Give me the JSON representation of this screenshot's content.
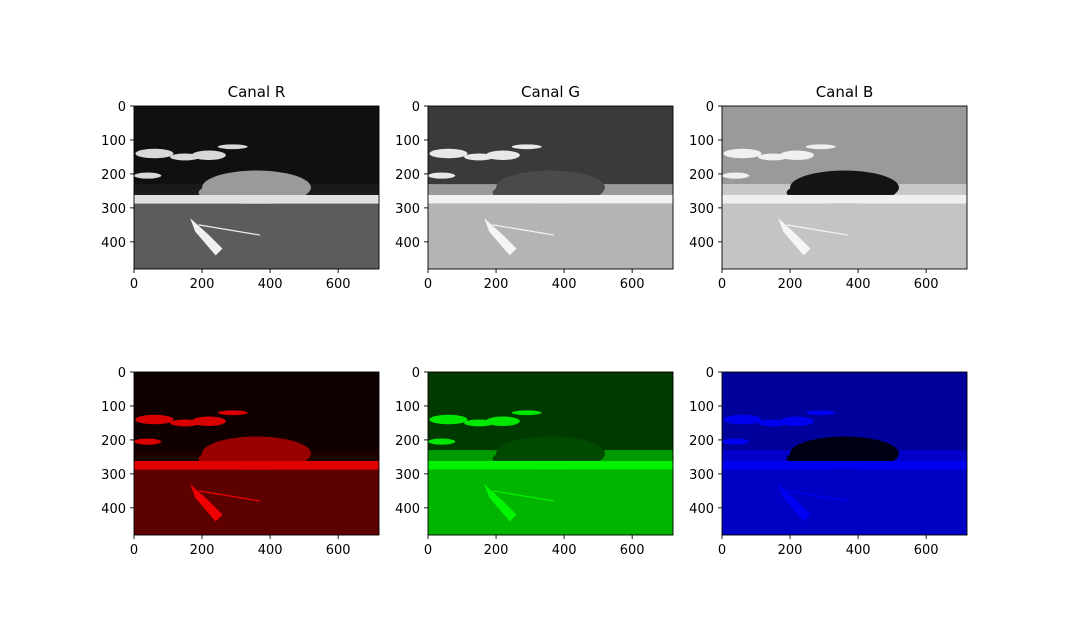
{
  "chart_data": [
    {
      "type": "image",
      "title": "Canal R",
      "channel": "R",
      "colormap": "gray",
      "x_ticks": [
        0,
        200,
        400,
        600
      ],
      "y_ticks": [
        0,
        100,
        200,
        300,
        400
      ],
      "xlim": [
        0,
        720
      ],
      "ylim": [
        480,
        0
      ]
    },
    {
      "type": "image",
      "title": "Canal G",
      "channel": "G",
      "colormap": "gray",
      "x_ticks": [
        0,
        200,
        400,
        600
      ],
      "y_ticks": [
        0,
        100,
        200,
        300,
        400
      ],
      "xlim": [
        0,
        720
      ],
      "ylim": [
        480,
        0
      ]
    },
    {
      "type": "image",
      "title": "Canal B",
      "channel": "B",
      "colormap": "gray",
      "x_ticks": [
        0,
        200,
        400,
        600
      ],
      "y_ticks": [
        0,
        100,
        200,
        300,
        400
      ],
      "xlim": [
        0,
        720
      ],
      "ylim": [
        480,
        0
      ]
    },
    {
      "type": "image",
      "title": "",
      "channel": "R",
      "colormap": "red",
      "tint": "#ff0000",
      "x_ticks": [
        0,
        200,
        400,
        600
      ],
      "y_ticks": [
        0,
        100,
        200,
        300,
        400
      ],
      "xlim": [
        0,
        720
      ],
      "ylim": [
        480,
        0
      ]
    },
    {
      "type": "image",
      "title": "",
      "channel": "G",
      "colormap": "green",
      "tint": "#00ff00",
      "x_ticks": [
        0,
        200,
        400,
        600
      ],
      "y_ticks": [
        0,
        100,
        200,
        300,
        400
      ],
      "xlim": [
        0,
        720
      ],
      "ylim": [
        480,
        0
      ]
    },
    {
      "type": "image",
      "title": "",
      "channel": "B",
      "colormap": "blue",
      "tint": "#0000ff",
      "x_ticks": [
        0,
        200,
        400,
        600
      ],
      "y_ticks": [
        0,
        100,
        200,
        300,
        400
      ],
      "xlim": [
        0,
        720
      ],
      "ylim": [
        480,
        0
      ]
    }
  ]
}
